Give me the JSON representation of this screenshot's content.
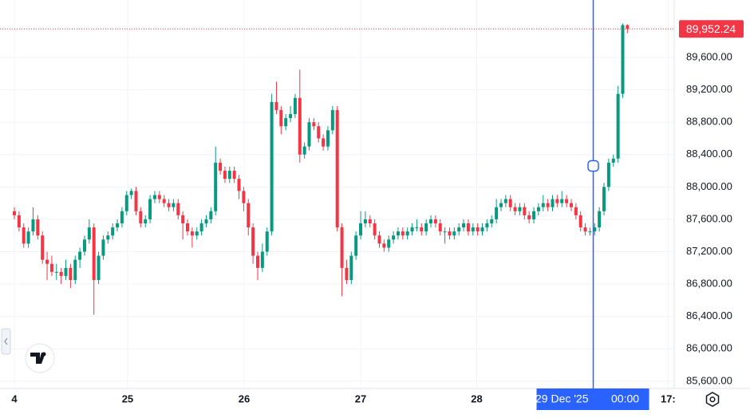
{
  "chart_data": {
    "type": "candlestick",
    "up_color": "#089981",
    "down_color": "#f23645",
    "grid": true,
    "xlim": [
      0,
      141
    ],
    "ylim": [
      85480,
      90310
    ],
    "yticks": [
      {
        "value": 85600,
        "label": "85,600.00"
      },
      {
        "value": 86000,
        "label": "86,000.00"
      },
      {
        "value": 86400,
        "label": "86,400.00"
      },
      {
        "value": 86800,
        "label": "86,800.00"
      },
      {
        "value": 87200,
        "label": "87,200.00"
      },
      {
        "value": 87600,
        "label": "87,600.00"
      },
      {
        "value": 88000,
        "label": "88,000.00"
      },
      {
        "value": 88400,
        "label": "88,400.00"
      },
      {
        "value": 88800,
        "label": "88,800.00"
      },
      {
        "value": 89200,
        "label": "89,200.00"
      },
      {
        "value": 89600,
        "label": "89,600.00"
      }
    ],
    "xticks": [
      {
        "value": 0,
        "label": "4"
      },
      {
        "value": 24.2,
        "label": "25"
      },
      {
        "value": 49.1,
        "label": "26"
      },
      {
        "value": 74,
        "label": "27"
      },
      {
        "value": 98.8,
        "label": "28"
      },
      {
        "value": 139.7,
        "label": "17:"
      }
    ],
    "last_price": {
      "value": 89952.24,
      "label": "89,952.24"
    },
    "crosshair": {
      "x": 123.7,
      "date_label": "29 Dec '25",
      "time_label": "00:00"
    },
    "candles": [
      [
        87700,
        87750,
        87600,
        87650
      ],
      [
        87650,
        87700,
        87450,
        87500
      ],
      [
        87500,
        87550,
        87250,
        87300
      ],
      [
        87300,
        87500,
        87250,
        87450
      ],
      [
        87450,
        87750,
        87400,
        87600
      ],
      [
        87600,
        87650,
        87350,
        87400
      ],
      [
        87400,
        87450,
        87050,
        87100
      ],
      [
        87100,
        87200,
        86850,
        87050
      ],
      [
        87050,
        87150,
        86900,
        86950
      ],
      [
        86950,
        87050,
        86850,
        86950
      ],
      [
        86950,
        87000,
        86800,
        86900
      ],
      [
        86900,
        87100,
        86850,
        87000
      ],
      [
        87000,
        87050,
        86750,
        86850
      ],
      [
        86850,
        87150,
        86800,
        87100
      ],
      [
        87100,
        87250,
        87000,
        87200
      ],
      [
        87200,
        87400,
        87150,
        87350
      ],
      [
        87350,
        87600,
        87300,
        87500
      ],
      [
        87500,
        87550,
        86420,
        86850
      ],
      [
        86850,
        87200,
        86800,
        87150
      ],
      [
        87150,
        87400,
        87100,
        87350
      ],
      [
        87350,
        87450,
        87300,
        87400
      ],
      [
        87400,
        87550,
        87350,
        87500
      ],
      [
        87500,
        87600,
        87450,
        87550
      ],
      [
        87550,
        87750,
        87500,
        87700
      ],
      [
        87700,
        87950,
        87650,
        87900
      ],
      [
        87900,
        87980,
        87850,
        87950
      ],
      [
        87950,
        88000,
        87650,
        87700
      ],
      [
        87700,
        87750,
        87500,
        87550
      ],
      [
        87550,
        87650,
        87500,
        87600
      ],
      [
        87600,
        87900,
        87550,
        87850
      ],
      [
        87850,
        87950,
        87800,
        87900
      ],
      [
        87900,
        87950,
        87800,
        87850
      ],
      [
        87850,
        87900,
        87750,
        87800
      ],
      [
        87800,
        87850,
        87700,
        87750
      ],
      [
        87750,
        87850,
        87700,
        87800
      ],
      [
        87800,
        87850,
        87600,
        87650
      ],
      [
        87650,
        87700,
        87350,
        87550
      ],
      [
        87550,
        87600,
        87400,
        87450
      ],
      [
        87450,
        87500,
        87250,
        87400
      ],
      [
        87400,
        87500,
        87350,
        87450
      ],
      [
        87450,
        87600,
        87400,
        87550
      ],
      [
        87550,
        87650,
        87500,
        87600
      ],
      [
        87600,
        87750,
        87550,
        87700
      ],
      [
        87700,
        88500,
        87650,
        88300
      ],
      [
        88300,
        88350,
        88150,
        88200
      ],
      [
        88200,
        88250,
        88050,
        88100
      ],
      [
        88100,
        88250,
        88050,
        88200
      ],
      [
        88200,
        88250,
        88050,
        88100
      ],
      [
        88100,
        88150,
        87850,
        87950
      ],
      [
        87950,
        88000,
        87700,
        87800
      ],
      [
        87800,
        87850,
        87400,
        87500
      ],
      [
        87500,
        87550,
        87050,
        87150
      ],
      [
        87150,
        87200,
        86850,
        87000
      ],
      [
        87000,
        87300,
        86950,
        87200
      ],
      [
        87200,
        87500,
        87150,
        87450
      ],
      [
        87450,
        89150,
        87400,
        89050
      ],
      [
        89050,
        89300,
        88900,
        88950
      ],
      [
        88950,
        89000,
        88650,
        88750
      ],
      [
        88750,
        88900,
        88700,
        88850
      ],
      [
        88850,
        89000,
        88800,
        88900
      ],
      [
        88900,
        89150,
        88850,
        89100
      ],
      [
        89100,
        89450,
        88300,
        88400
      ],
      [
        88400,
        88550,
        88350,
        88500
      ],
      [
        88500,
        88850,
        88450,
        88800
      ],
      [
        88800,
        88850,
        88700,
        88750
      ],
      [
        88750,
        88800,
        88550,
        88600
      ],
      [
        88600,
        88650,
        88450,
        88500
      ],
      [
        88500,
        88750,
        88450,
        88700
      ],
      [
        88700,
        89000,
        88650,
        88950
      ],
      [
        88950,
        89000,
        87450,
        87500
      ],
      [
        87500,
        87550,
        86650,
        87000
      ],
      [
        87000,
        87100,
        86800,
        86850
      ],
      [
        86850,
        87200,
        86800,
        87150
      ],
      [
        87150,
        87450,
        87100,
        87400
      ],
      [
        87400,
        87700,
        87350,
        87550
      ],
      [
        87550,
        87700,
        87500,
        87600
      ],
      [
        87600,
        87650,
        87500,
        87550
      ],
      [
        87550,
        87600,
        87350,
        87400
      ],
      [
        87400,
        87450,
        87250,
        87300
      ],
      [
        87300,
        87350,
        87200,
        87250
      ],
      [
        87250,
        87400,
        87200,
        87350
      ],
      [
        87350,
        87450,
        87300,
        87400
      ],
      [
        87400,
        87500,
        87350,
        87450
      ],
      [
        87450,
        87500,
        87350,
        87400
      ],
      [
        87400,
        87500,
        87350,
        87450
      ],
      [
        87450,
        87550,
        87400,
        87500
      ],
      [
        87500,
        87600,
        87450,
        87500
      ],
      [
        87500,
        87550,
        87400,
        87450
      ],
      [
        87450,
        87600,
        87400,
        87550
      ],
      [
        87550,
        87650,
        87500,
        87600
      ],
      [
        87600,
        87650,
        87500,
        87550
      ],
      [
        87550,
        87600,
        87400,
        87450
      ],
      [
        87450,
        87500,
        87300,
        87450
      ],
      [
        87450,
        87500,
        87350,
        87400
      ],
      [
        87400,
        87500,
        87350,
        87450
      ],
      [
        87450,
        87550,
        87400,
        87500
      ],
      [
        87500,
        87600,
        87450,
        87550
      ],
      [
        87550,
        87600,
        87400,
        87450
      ],
      [
        87450,
        87550,
        87400,
        87500
      ],
      [
        87500,
        87550,
        87400,
        87450
      ],
      [
        87450,
        87550,
        87400,
        87500
      ],
      [
        87500,
        87600,
        87450,
        87550
      ],
      [
        87550,
        87650,
        87500,
        87600
      ],
      [
        87600,
        87850,
        87550,
        87750
      ],
      [
        87750,
        87850,
        87700,
        87800
      ],
      [
        87800,
        87900,
        87750,
        87850
      ],
      [
        87850,
        87900,
        87700,
        87750
      ],
      [
        87750,
        87800,
        87650,
        87700
      ],
      [
        87700,
        87800,
        87650,
        87750
      ],
      [
        87750,
        87800,
        87600,
        87650
      ],
      [
        87650,
        87700,
        87550,
        87600
      ],
      [
        87600,
        87750,
        87550,
        87700
      ],
      [
        87700,
        87800,
        87650,
        87750
      ],
      [
        87750,
        87900,
        87700,
        87800
      ],
      [
        87800,
        87850,
        87700,
        87750
      ],
      [
        87750,
        87900,
        87700,
        87850
      ],
      [
        87850,
        87900,
        87750,
        87800
      ],
      [
        87800,
        87950,
        87750,
        87850
      ],
      [
        87850,
        87900,
        87750,
        87800
      ],
      [
        87800,
        87850,
        87700,
        87750
      ],
      [
        87750,
        87800,
        87600,
        87650
      ],
      [
        87650,
        87700,
        87450,
        87500
      ],
      [
        87500,
        87550,
        87400,
        87450
      ],
      [
        87450,
        87500,
        87400,
        87450
      ],
      [
        87450,
        87550,
        87400,
        87500
      ],
      [
        87500,
        87750,
        87450,
        87700
      ],
      [
        87700,
        88050,
        87650,
        88000
      ],
      [
        88000,
        88350,
        87950,
        88300
      ],
      [
        88300,
        88400,
        88250,
        88350
      ],
      [
        88350,
        89250,
        88300,
        89150
      ],
      [
        89150,
        90020,
        89100,
        90000
      ],
      [
        90000,
        90010,
        89900,
        89952.24
      ]
    ]
  }
}
